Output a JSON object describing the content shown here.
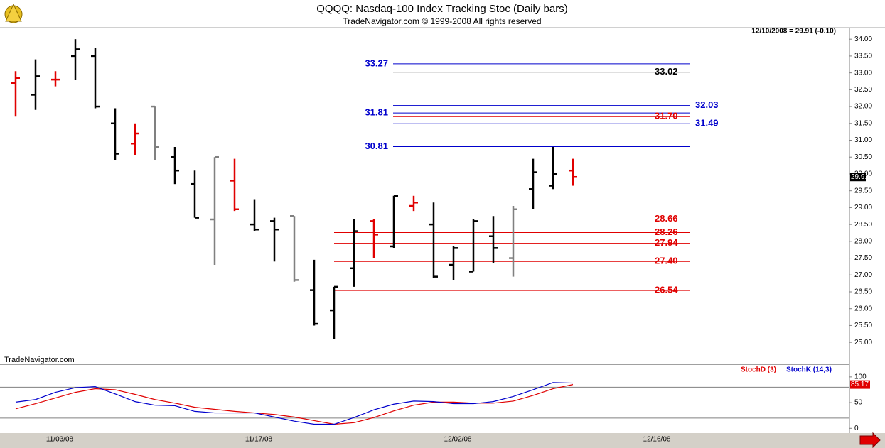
{
  "chart_data": [
    {
      "type": "ohlc",
      "title": "QQQQ:  Nasdaq-100 Index Tracking Stoc  (Daily bars)",
      "subtitle": "TradeNavigator.com © 1999-2008 All rights reserved",
      "annotation": "12/10/2008 = 29.91 (-0.10)",
      "watermark": "TradeNavigator.com",
      "categories": [
        null,
        null,
        "11/03/08",
        null,
        null,
        null,
        null,
        null,
        null,
        null,
        null,
        null,
        "11/17/08",
        null,
        null,
        null,
        null,
        null,
        null,
        null,
        null,
        null,
        "12/02/08",
        null,
        null,
        null,
        null,
        null,
        null,
        null,
        null,
        null,
        "12/16/08"
      ],
      "open": [
        32.7,
        32.35,
        32.8,
        33.5,
        33.5,
        31.5,
        30.9,
        32.0,
        30.5,
        29.7,
        28.65,
        29.8,
        28.5,
        28.6,
        28.75,
        26.55,
        25.95,
        27.2,
        28.6,
        27.85,
        29.05,
        28.5,
        27.3,
        27.1,
        28.15,
        27.5,
        29.55,
        29.65,
        30.1,
        null,
        null,
        null,
        null
      ],
      "high": [
        33.05,
        33.4,
        33.05,
        34.0,
        33.75,
        31.95,
        31.5,
        32.0,
        30.8,
        30.1,
        30.5,
        30.45,
        29.25,
        28.7,
        28.75,
        27.45,
        26.65,
        28.65,
        28.65,
        29.35,
        29.35,
        29.15,
        27.85,
        28.65,
        28.75,
        29.05,
        30.45,
        30.8,
        30.45,
        null,
        null,
        null,
        null
      ],
      "low": [
        31.7,
        31.9,
        32.6,
        32.8,
        31.95,
        30.4,
        30.55,
        30.4,
        29.7,
        28.7,
        27.3,
        28.9,
        28.3,
        27.4,
        26.8,
        25.5,
        25.1,
        26.65,
        27.5,
        27.8,
        28.9,
        26.9,
        26.85,
        27.1,
        27.35,
        26.95,
        28.95,
        29.55,
        29.65,
        null,
        null,
        null,
        null
      ],
      "close": [
        32.85,
        32.9,
        32.8,
        33.7,
        32.0,
        30.6,
        31.2,
        30.8,
        30.1,
        28.7,
        30.5,
        28.95,
        28.35,
        28.35,
        26.85,
        25.55,
        26.65,
        28.3,
        28.2,
        29.35,
        29.15,
        26.95,
        27.8,
        28.6,
        27.8,
        28.95,
        30.05,
        30.0,
        29.91,
        null,
        null,
        null,
        null
      ],
      "colors": [
        "#e00000",
        "#000000",
        "#e00000",
        "#000000",
        "#000000",
        "#000000",
        "#e00000",
        "#808080",
        "#000000",
        "#000000",
        "#808080",
        "#e00000",
        "#000000",
        "#000000",
        "#808080",
        "#000000",
        "#000000",
        "#000000",
        "#e00000",
        "#000000",
        "#e00000",
        "#000000",
        "#000000",
        "#000000",
        "#000000",
        "#808080",
        "#000000",
        "#000000",
        "#e00000",
        null,
        null,
        null,
        null
      ],
      "ylim": [
        24.35,
        34.32
      ],
      "yticks": [
        {
          "value": 25,
          "label": "25.00"
        },
        {
          "value": 25.5,
          "label": "25.50"
        },
        {
          "value": 26,
          "label": "26.00"
        },
        {
          "value": 26.5,
          "label": "26.50"
        },
        {
          "value": 27,
          "label": "27.00"
        },
        {
          "value": 27.5,
          "label": "27.50"
        },
        {
          "value": 28,
          "label": "28.00"
        },
        {
          "value": 28.5,
          "label": "28.50"
        },
        {
          "value": 29,
          "label": "29.00"
        },
        {
          "value": 29.5,
          "label": "29.50"
        },
        {
          "value": 30,
          "label": "30.00"
        },
        {
          "value": 30.5,
          "label": "30.50"
        },
        {
          "value": 31,
          "label": "31.00"
        },
        {
          "value": 31.5,
          "label": "31.50"
        },
        {
          "value": 32,
          "label": "32.00"
        },
        {
          "value": 32.5,
          "label": "32.50"
        },
        {
          "value": 33,
          "label": "33.00"
        },
        {
          "value": 33.5,
          "label": "33.50"
        },
        {
          "value": 34,
          "label": "34.00"
        }
      ],
      "levels": [
        {
          "value": 33.27,
          "label": "33.27",
          "color": "#0000cc",
          "label_side": "left"
        },
        {
          "value": 33.02,
          "label": "33.02",
          "color": "#000000",
          "label_side": "right"
        },
        {
          "value": 32.03,
          "label": "32.03",
          "color": "#0000cc",
          "label_side": "right"
        },
        {
          "value": 31.81,
          "label": "31.81",
          "color": "#0000cc",
          "label_side": "left"
        },
        {
          "value": 31.7,
          "label": "31.70",
          "color": "#e00000",
          "label_side": "right"
        },
        {
          "value": 31.49,
          "label": "31.49",
          "color": "#0000cc",
          "label_side": "right"
        },
        {
          "value": 30.81,
          "label": "30.81",
          "color": "#0000cc",
          "label_side": "left"
        },
        {
          "value": 28.66,
          "label": "28.66",
          "color": "#e00000",
          "label_side": "right"
        },
        {
          "value": 28.26,
          "label": "28.26",
          "color": "#e00000",
          "label_side": "right"
        },
        {
          "value": 27.94,
          "label": "27.94",
          "color": "#e00000",
          "label_side": "right"
        },
        {
          "value": 27.4,
          "label": "27.40",
          "color": "#e00000",
          "label_side": "right"
        },
        {
          "value": 26.54,
          "label": "26.54",
          "color": "#e00000",
          "label_side": "right"
        }
      ]
    },
    {
      "type": "line",
      "series": [
        {
          "name": "StochD (3)",
          "color": "#e00000",
          "values": [
            38,
            48,
            59,
            70,
            77,
            75,
            66,
            56,
            49,
            41,
            37,
            33,
            30,
            27,
            22,
            15,
            8,
            11,
            21,
            34,
            45,
            51,
            51,
            49,
            49,
            53,
            64,
            77,
            85.17,
            null,
            null,
            null,
            null
          ]
        },
        {
          "name": "StochK (14,3)",
          "color": "#0000cc",
          "values": [
            51,
            56,
            70,
            79,
            81,
            67,
            52,
            45,
            44,
            33,
            30,
            30,
            30,
            22,
            14,
            8,
            8,
            21,
            36,
            47,
            53,
            52,
            48,
            48,
            52,
            62,
            75,
            89,
            88,
            null,
            null,
            null,
            null
          ]
        }
      ],
      "ylim": [
        -12,
        115
      ],
      "yticks": [
        0,
        50,
        100
      ],
      "levels": [
        20,
        80
      ]
    }
  ]
}
